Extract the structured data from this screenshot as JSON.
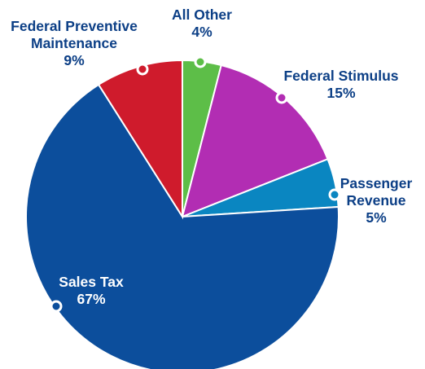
{
  "chart_data": {
    "type": "pie",
    "slices": [
      {
        "name": "Sales Tax",
        "value": 67,
        "label": "Sales Tax",
        "pct": "67%",
        "color": "#0C4E9C"
      },
      {
        "name": "Federal Preventive Maintenance",
        "value": 9,
        "label": "Federal Preventive\nMaintenance",
        "pct": "9%",
        "color": "#CF1B2C"
      },
      {
        "name": "All Other",
        "value": 4,
        "label": "All Other",
        "pct": "4%",
        "color": "#5DBE48"
      },
      {
        "name": "Federal Stimulus",
        "value": 15,
        "label": "Federal Stimulus",
        "pct": "15%",
        "color": "#B22DB3"
      },
      {
        "name": "Passenger Revenue",
        "value": 5,
        "label": "Passenger\nRevenue",
        "pct": "5%",
        "color": "#0A86C1"
      }
    ]
  }
}
